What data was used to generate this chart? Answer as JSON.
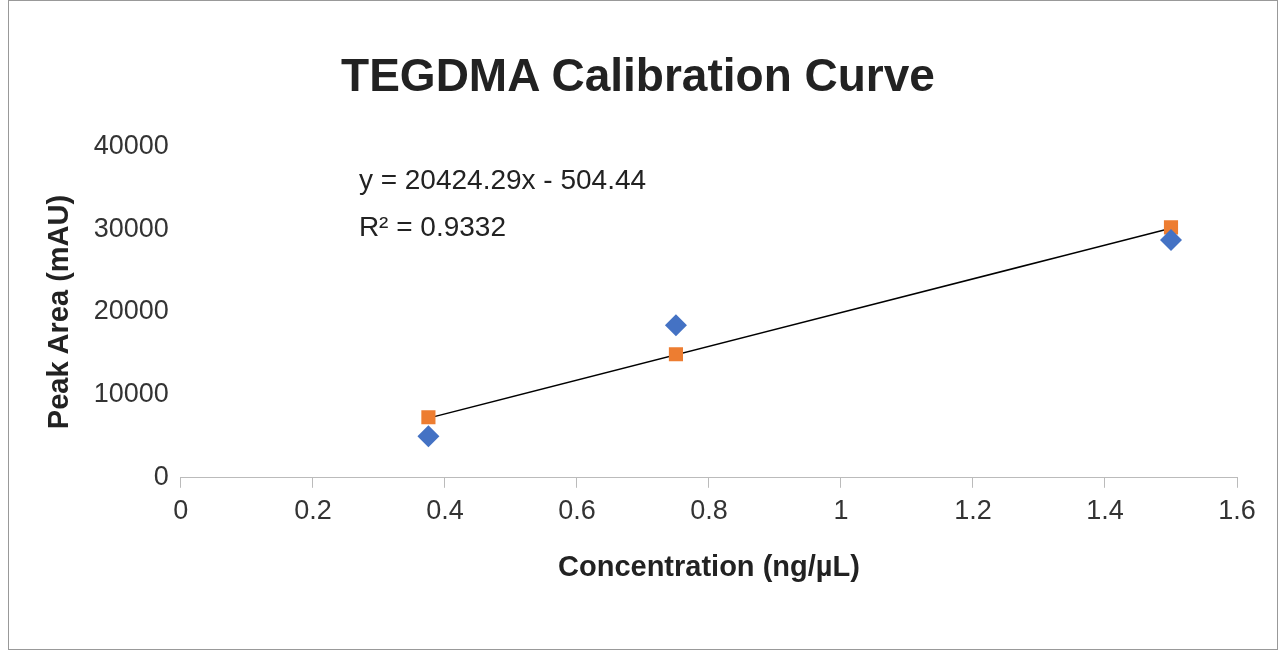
{
  "chart_data": {
    "type": "scatter",
    "title": "TEGDMA Calibration Curve",
    "xlabel": "Concentration (ng/µL)",
    "ylabel": "Peak Area (mAU)",
    "xlim": [
      0,
      1.6
    ],
    "xticks": [
      0,
      0.2,
      0.4,
      0.6,
      0.8,
      1,
      1.2,
      1.4,
      1.6
    ],
    "ylim": [
      0,
      40000
    ],
    "yticks": [
      0,
      10000,
      20000,
      30000,
      40000
    ],
    "grid": false,
    "legend": false,
    "annotations": [
      "y = 20424.29x - 504.44",
      "R² = 0.9332"
    ],
    "series": [
      {
        "marker": "diamond",
        "color": "#4472c4",
        "x": [
          0.375,
          0.75,
          1.5
        ],
        "values": [
          5000,
          18400,
          28700
        ]
      },
      {
        "marker": "square",
        "color": "#ed7d31",
        "x": [
          0.375,
          0.75,
          1.5
        ],
        "values": [
          7300,
          14900,
          30200
        ]
      },
      {
        "type": "line",
        "marker": "none",
        "color": "#000000",
        "x": [
          0.375,
          1.5
        ],
        "values": [
          7200,
          30100
        ]
      }
    ]
  }
}
